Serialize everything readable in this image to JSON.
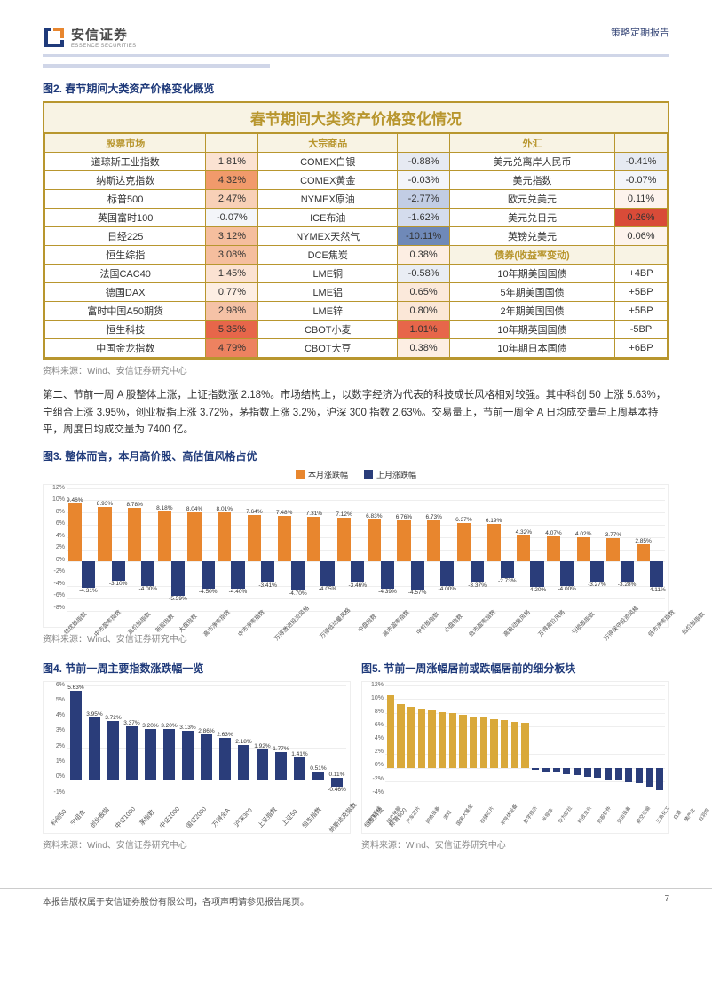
{
  "header": {
    "brand_cn": "安信证券",
    "brand_en": "ESSENCE SECURITIES",
    "report_type": "策略定期报告"
  },
  "fig2": {
    "title": "图2. 春节期间大类资产价格变化概览",
    "table_title": "春节期间大类资产价格变化情况",
    "header_cols": [
      "股票市场",
      "",
      "大宗商品",
      "",
      "外汇",
      ""
    ],
    "rows": [
      {
        "a": "道琼斯工业指数",
        "av": "1.81%",
        "ac": "#fbe2d2",
        "b": "COMEX白银",
        "bv": "-0.88%",
        "bc": "#e6eaf2",
        "c": "美元兑离岸人民币",
        "cv": "-0.41%",
        "cc": "#e6eaf2"
      },
      {
        "a": "纳斯达克指数",
        "av": "4.32%",
        "ac": "#f19a6b",
        "b": "COMEX黄金",
        "bv": "-0.03%",
        "bc": "#f3f5f9",
        "c": "美元指数",
        "cv": "-0.07%",
        "cc": "#f3f5f9"
      },
      {
        "a": "标普500",
        "av": "2.47%",
        "ac": "#f8d0b7",
        "b": "NYMEX原油",
        "bv": "-2.77%",
        "bc": "#c2cde4",
        "c": "欧元兑美元",
        "cv": "0.11%",
        "cc": "#fdf3ec"
      },
      {
        "a": "英国富时100",
        "av": "-0.07%",
        "ac": "#f3f5f9",
        "b": "ICE布油",
        "bv": "-1.62%",
        "bc": "#d4dced",
        "c": "美元兑日元",
        "cv": "0.26%",
        "cc": "#d94b38"
      },
      {
        "a": "日经225",
        "av": "3.12%",
        "ac": "#f5be9e",
        "b": "NYMEX天然气",
        "bv": "-10.11%",
        "bc": "#6f89b8",
        "c": "英镑兑美元",
        "cv": "0.06%",
        "cc": "#fdf3ec"
      },
      {
        "a": "恒生综指",
        "av": "3.08%",
        "ac": "#f5be9e",
        "b": "DCE焦炭",
        "bv": "0.38%",
        "bc": "#fdeee3",
        "c": "债券(收益率变动)",
        "cv": "",
        "cc": "#f8f3e4",
        "hdr": true
      },
      {
        "a": "法国CAC40",
        "av": "1.45%",
        "ac": "#fbe2d2",
        "b": "LME铜",
        "bv": "-0.58%",
        "bc": "#e9edf4",
        "c": "10年期美国国债",
        "cv": "+4BP",
        "cc": "#fff"
      },
      {
        "a": "德国DAX",
        "av": "0.77%",
        "ac": "#fdeee3",
        "b": "LME铝",
        "bv": "0.65%",
        "bc": "#fbe9db",
        "c": "5年期美国国债",
        "cv": "+5BP",
        "cc": "#fff"
      },
      {
        "a": "富时中国A50期货",
        "av": "2.98%",
        "ac": "#f5c2a6",
        "b": "LME锌",
        "bv": "0.80%",
        "bc": "#fbe7d7",
        "c": "2年期美国国债",
        "cv": "+5BP",
        "cc": "#fff"
      },
      {
        "a": "恒生科技",
        "av": "5.35%",
        "ac": "#e7664a",
        "b": "CBOT小麦",
        "bv": "1.01%",
        "bc": "#e7664a",
        "c": "10年期英国国债",
        "cv": "-5BP",
        "cc": "#fff"
      },
      {
        "a": "中国金龙指数",
        "av": "4.79%",
        "ac": "#ed8260",
        "b": "CBOT大豆",
        "bv": "0.38%",
        "bc": "#fdeee3",
        "c": "10年期日本国债",
        "cv": "+6BP",
        "cc": "#fff"
      }
    ],
    "source": "资料来源：Wind、安信证券研究中心"
  },
  "body_text": "第二、节前一周 A 股整体上涨，上证指数涨 2.18%。市场结构上，以数字经济为代表的科技成长风格相对较强。其中科创 50 上涨 5.63%，宁组合上涨 3.95%，创业板指上涨 3.72%，茅指数上涨 3.2%，沪深 300 指数 2.63%。交易量上，节前一周全 A 日均成交量与上周基本持平，周度日均成交量为 7400 亿。",
  "fig3": {
    "title": "图3. 整体而言，本月高价股、高估值风格占优",
    "legend": [
      {
        "label": "本月涨跌幅",
        "color": "#e8862e"
      },
      {
        "label": "上月涨跌幅",
        "color": "#2a3d7a"
      }
    ],
    "yticks": [
      "12%",
      "10%",
      "8%",
      "6%",
      "4%",
      "2%",
      "0%",
      "-2%",
      "-4%",
      "-6%",
      "-8%"
    ],
    "ymin": -8,
    "ymax": 12,
    "categories": [
      "绩优股指数",
      "中市盈率指数",
      "高价股指数",
      "新股指数",
      "大盘指数",
      "高市净率指数",
      "中市净率指数",
      "万得激进投资风格",
      "万得低动量风格",
      "中盘指数",
      "高市盈率指数",
      "中价股指数",
      "小盘指数",
      "低市盈率指数",
      "高股动量风格",
      "万得高价风格",
      "亏损股指数",
      "万得保守投资风格",
      "低市净率指数",
      "低价股指数"
    ],
    "this_month": [
      9.46,
      8.93,
      8.78,
      8.18,
      8.04,
      8.01,
      7.64,
      7.48,
      7.31,
      7.12,
      6.83,
      6.76,
      6.73,
      6.37,
      6.19,
      4.32,
      4.07,
      4.02,
      3.77,
      2.85
    ],
    "last_month": [
      -4.31,
      -3.1,
      -4.0,
      -5.59,
      -4.5,
      -4.4,
      -3.41,
      -4.7,
      -4.05,
      -3.46,
      -4.39,
      -4.57,
      -4.0,
      -3.37,
      -2.73,
      -4.2,
      -4.0,
      -3.27,
      -3.28,
      -4.11
    ],
    "source": "资料来源：Wind、安信证券研究中心"
  },
  "fig4": {
    "title": "图4. 节前一周主要指数涨跌幅一览",
    "yticks": [
      "6%",
      "5%",
      "4%",
      "3%",
      "2%",
      "1%",
      "0%",
      "-1%"
    ],
    "ymin": -1,
    "ymax": 6,
    "categories": [
      "科创50",
      "宁组合",
      "创业板指",
      "中证1000",
      "茅指数",
      "中证1000",
      "国证2000",
      "万得全A",
      "沪深300",
      "上证指数",
      "上证50",
      "恒生指数",
      "纳斯达克指数",
      "恒生科技",
      "标普500"
    ],
    "values": [
      5.63,
      3.95,
      3.72,
      3.37,
      3.2,
      3.2,
      3.13,
      2.86,
      2.63,
      2.18,
      1.92,
      1.77,
      1.41,
      0.51,
      0.11
    ],
    "values2": [
      null,
      null,
      null,
      null,
      null,
      null,
      null,
      null,
      null,
      null,
      null,
      null,
      null,
      null,
      -0.46
    ],
    "color": "#2a3d7a",
    "source": "资料来源：Wind、安信证券研究中心"
  },
  "fig5": {
    "title": "图5. 节前一周涨幅居前或跌幅居前的细分板块",
    "yticks": [
      "12%",
      "10%",
      "8%",
      "6%",
      "4%",
      "2%",
      "0%",
      "-2%",
      "-4%"
    ],
    "ymin": -4,
    "ymax": 12,
    "categories": [
      "操作系统",
      "国产电脑",
      "汽车芯片",
      "网络设备",
      "游戏",
      "国家大基金",
      "存储芯片",
      "半导体设备",
      "数字经济",
      "半导体",
      "华为欧拉",
      "科技龙头",
      "炒股软件",
      "交运设备",
      "航空运输",
      "三高化工",
      "白酒",
      "猪产业",
      "白羽鸡",
      "猪类加工",
      "综合",
      "食品加工",
      "超级品牌",
      "家用电器",
      "白酒",
      "保险",
      "饮料制造"
    ],
    "values": [
      10.5,
      9.2,
      8.8,
      8.5,
      8.3,
      8.1,
      7.9,
      7.7,
      7.5,
      7.3,
      7.1,
      6.9,
      6.7,
      6.5,
      -0.3,
      -0.5,
      -0.7,
      -0.9,
      -1.1,
      -1.3,
      -1.5,
      -1.7,
      -1.9,
      -2.1,
      -2.3,
      -2.8,
      -3.3
    ],
    "pos_color": "#d9a93a",
    "neg_color": "#2a3d7a",
    "source": "资料来源：Wind、安信证券研究中心"
  },
  "footer": {
    "disclaimer": "本报告版权属于安信证券股份有限公司，各项声明请参见报告尾页。",
    "page": "7"
  }
}
